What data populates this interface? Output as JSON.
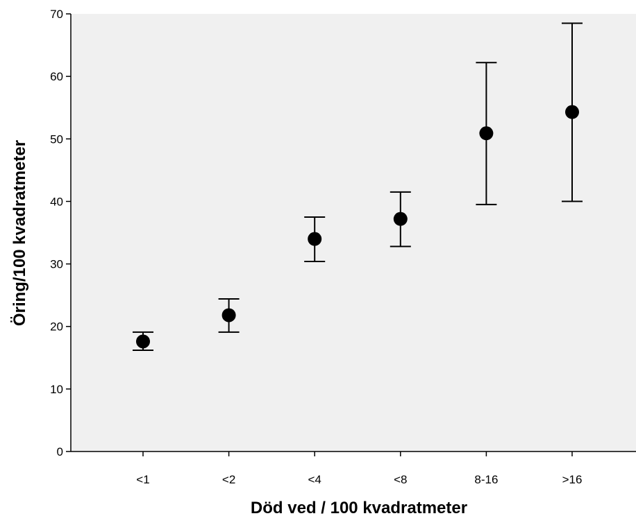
{
  "chart_data": {
    "type": "scatter",
    "title": "",
    "xlabel": "Död ved / 100 kvadratmeter",
    "ylabel": "Öring/100 kvadratmeter",
    "categories": [
      "<1",
      "<2",
      "<4",
      "<8",
      "8-16",
      ">16"
    ],
    "series": [
      {
        "values": [
          17.6,
          21.8,
          34.0,
          37.2,
          50.9,
          54.3
        ],
        "error_low": [
          16.2,
          19.1,
          30.4,
          32.8,
          39.5,
          40.0
        ],
        "error_high": [
          19.1,
          24.4,
          37.5,
          41.5,
          62.2,
          68.5
        ]
      }
    ],
    "ylim": [
      0,
      70
    ],
    "yticks": [
      0,
      10,
      20,
      30,
      40,
      50,
      60,
      70
    ],
    "grid": false,
    "colors": {
      "plot_background": "#f0f0f0",
      "marker": "#000000",
      "error_bar": "#000000",
      "axis": "#000000"
    }
  }
}
